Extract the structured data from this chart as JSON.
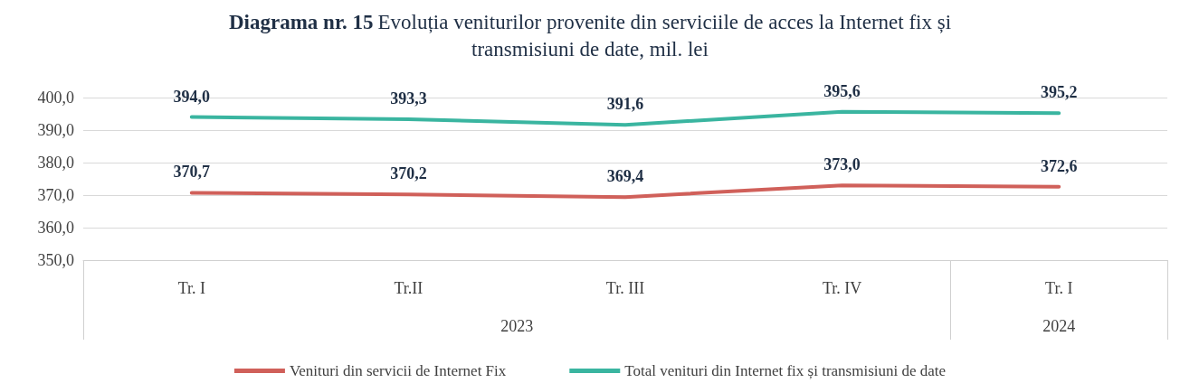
{
  "chart_data": {
    "type": "line",
    "title": "Diagrama nr. 15 Evoluția veniturilor provenite din serviciile de acces la Internet fix și transmisiuni de date, mil. lei",
    "categories": [
      "Tr. I",
      "Tr.II",
      "Tr. III",
      "Tr. IV",
      "Tr. I"
    ],
    "series": [
      {
        "name": "Venituri din servicii de Internet Fix",
        "color": "#d0605a",
        "values": [
          370.7,
          370.2,
          369.4,
          373.0,
          372.6
        ],
        "value_labels": [
          "370,7",
          "370,2",
          "369,4",
          "373,0",
          "372,6"
        ]
      },
      {
        "name": "Total venituri din Internet fix și transmisiuni de date",
        "color": "#3ab5a0",
        "values": [
          394.0,
          393.3,
          391.6,
          395.6,
          395.2
        ],
        "value_labels": [
          "394,0",
          "393,3",
          "391,6",
          "395,6",
          "395,2"
        ]
      }
    ],
    "ylim": [
      350,
      400
    ],
    "yticks": [
      {
        "value": 350,
        "label": "350,0"
      },
      {
        "value": 360,
        "label": "360,0"
      },
      {
        "value": 370,
        "label": "370,0"
      },
      {
        "value": 380,
        "label": "380,0"
      },
      {
        "value": 390,
        "label": "390,0"
      },
      {
        "value": 400,
        "label": "400,0"
      }
    ],
    "annotations": [
      "2023",
      "2024"
    ],
    "grid": "y",
    "legend": "bottom",
    "marker": "none",
    "line_style": "solid"
  }
}
